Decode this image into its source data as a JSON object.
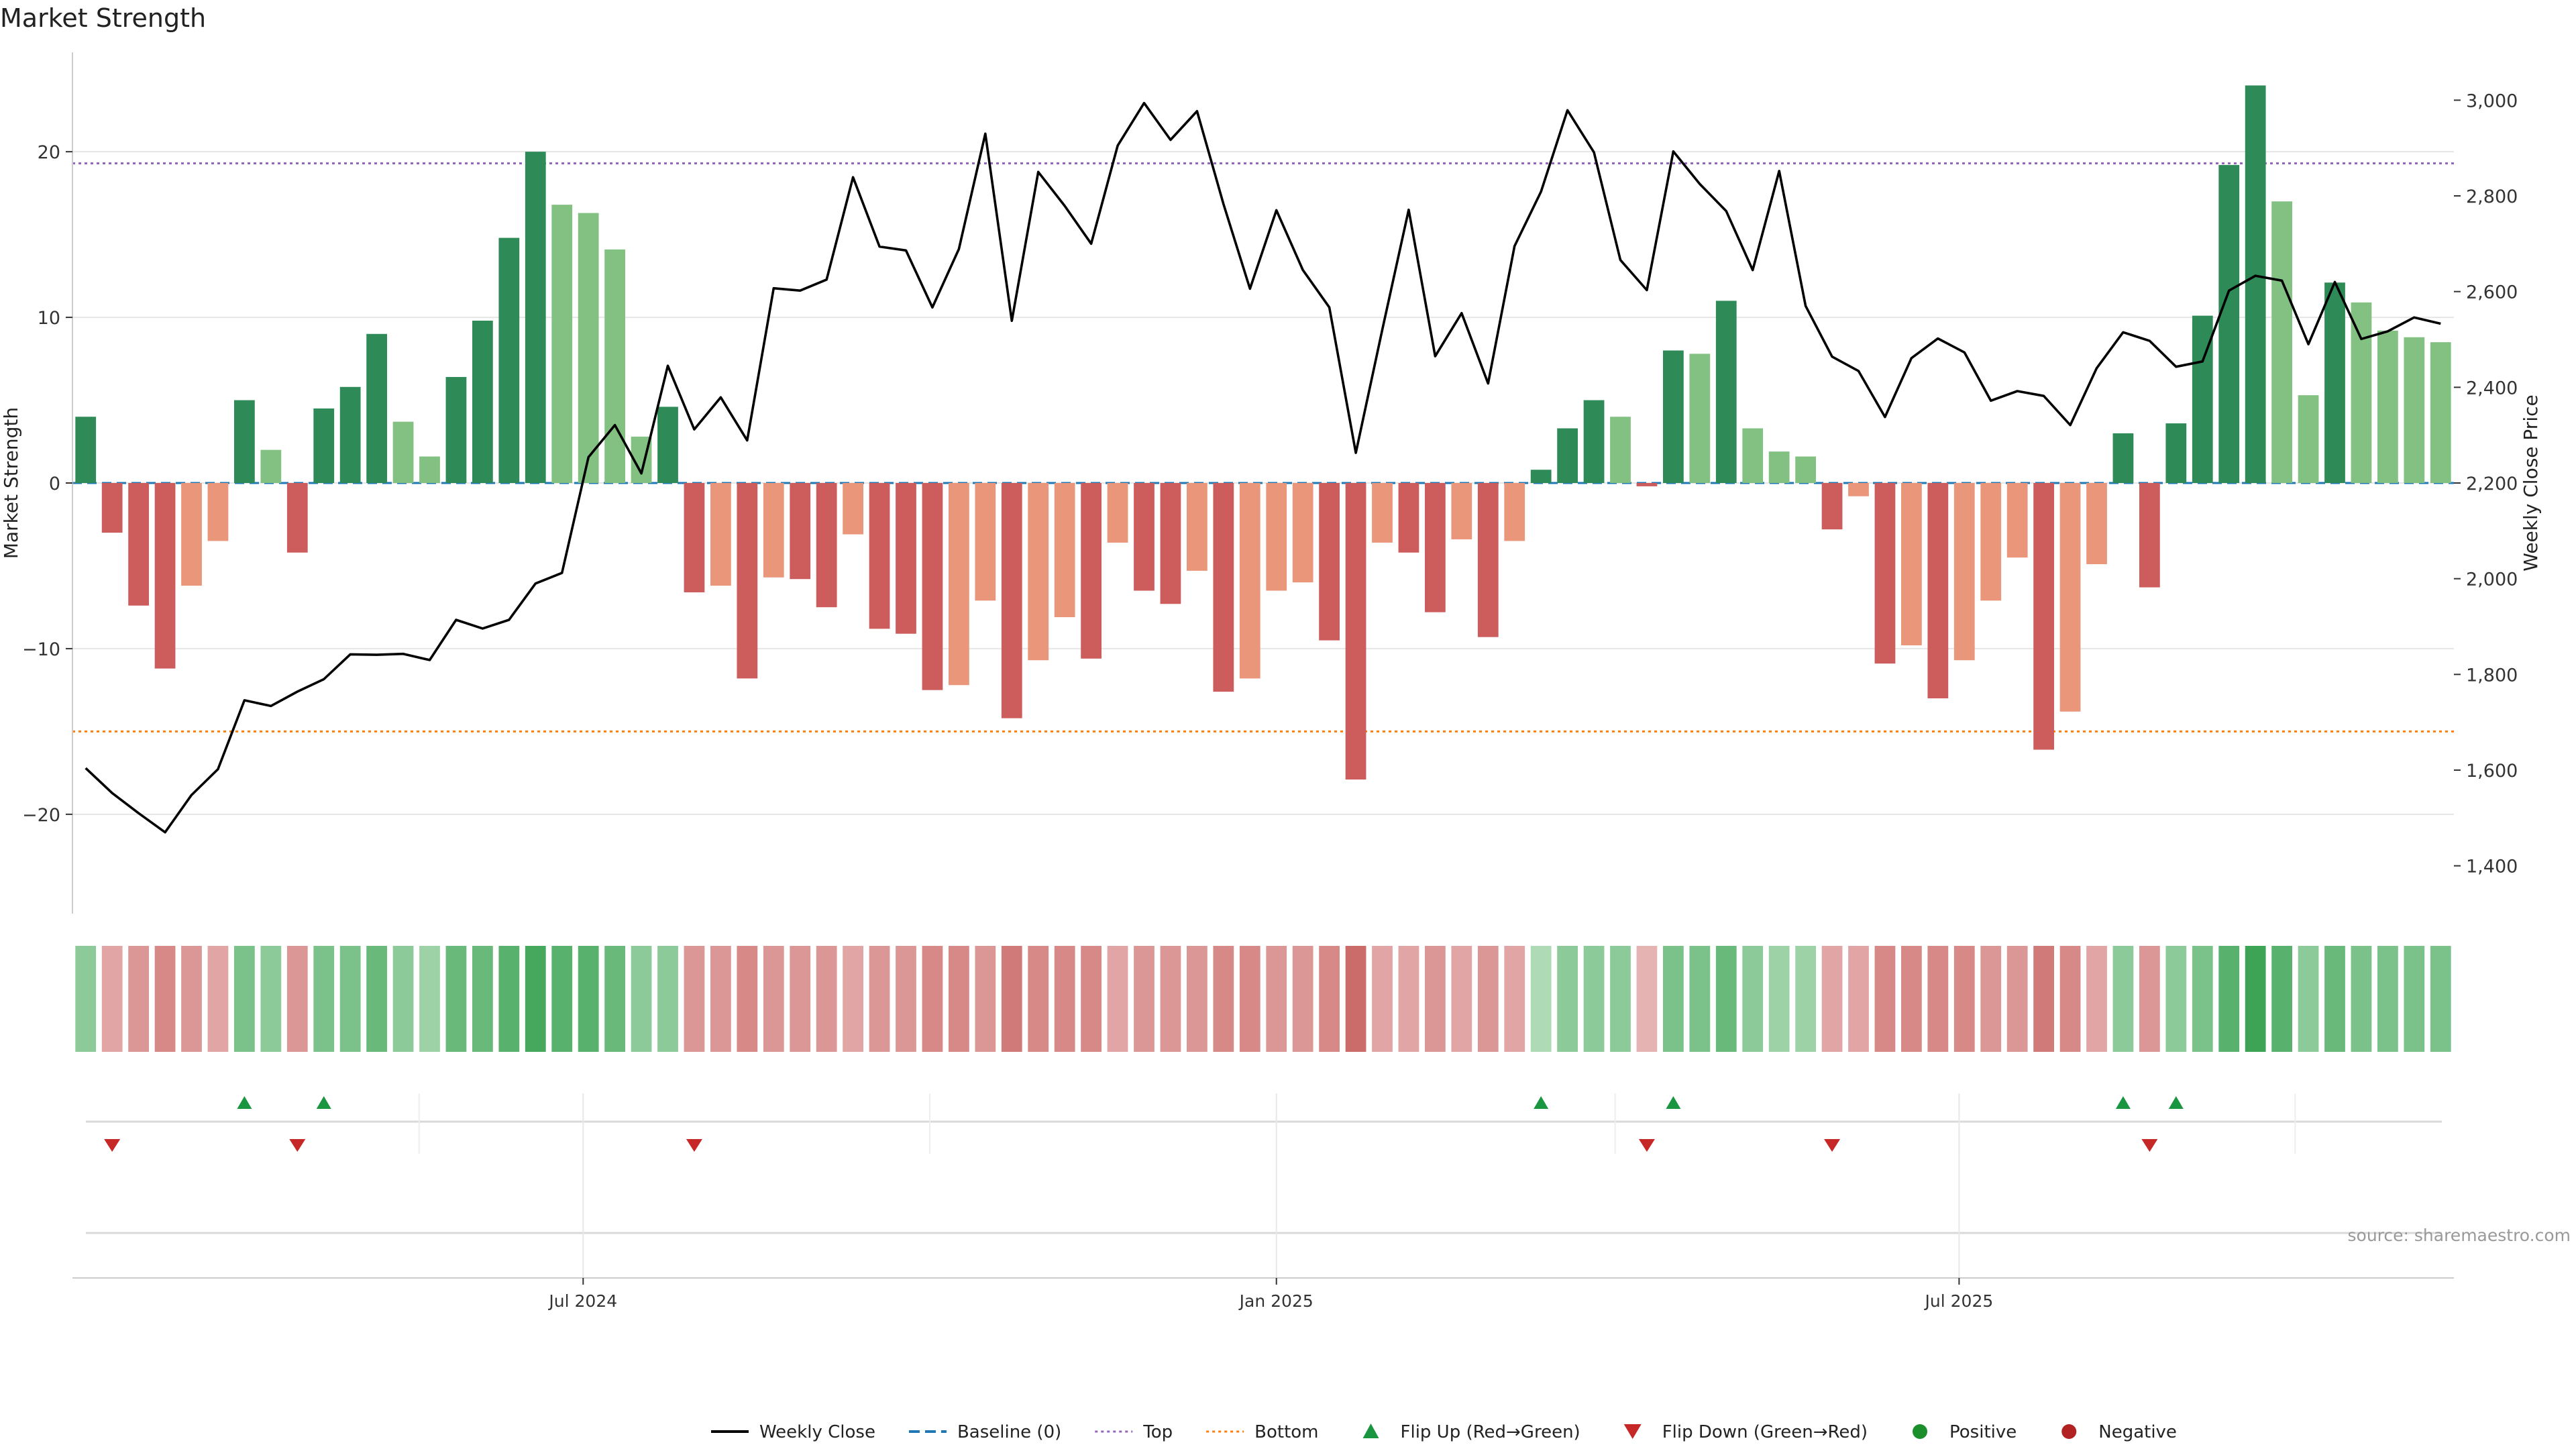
{
  "title": "Market Strength",
  "watermark": "source: sharemaestro.com",
  "legend": [
    {
      "label": "Weekly Close",
      "kind": "line",
      "color": "#000000"
    },
    {
      "label": "Baseline (0)",
      "kind": "dash",
      "color": "#1f77b4"
    },
    {
      "label": "Top",
      "kind": "dot",
      "color": "#9467bd"
    },
    {
      "label": "Bottom",
      "kind": "dot",
      "color": "#ff7f0e"
    },
    {
      "label": "Flip Up (Red→Green)",
      "kind": "tri-up",
      "color": "#1a9641"
    },
    {
      "label": "Flip Down (Green→Red)",
      "kind": "tri-down",
      "color": "#c62828"
    },
    {
      "label": "Positive",
      "kind": "circle",
      "color": "#1a8f2c"
    },
    {
      "label": "Negative",
      "kind": "circle",
      "color": "#b22222"
    }
  ],
  "colors": {
    "pos_strong": "#2e8b57",
    "pos_weak": "#82c182",
    "neg_strong": "#cd5c5c",
    "neg_weak": "#e9967a",
    "top_line": "#9467bd",
    "bottom_line": "#ff7f0e",
    "baseline": "#1f77b4",
    "price_line": "#000000"
  },
  "chart_data": {
    "type": "bar",
    "title": "Market Strength",
    "ylabel": "Market Strength",
    "y2label": "Weekly Close Price",
    "ylim": [
      -26,
      26
    ],
    "y2lim": [
      1300,
      3100
    ],
    "yticks": [
      -20,
      -10,
      0,
      10,
      20
    ],
    "yticklabels": [
      "−20",
      "−10",
      "0",
      "10",
      "20"
    ],
    "y2ticks": [
      1400,
      1600,
      1800,
      2000,
      2200,
      2400,
      2600,
      2800,
      3000
    ],
    "y2ticklabels": [
      "1,400",
      "1,600",
      "1,800",
      "2,000",
      "2,200",
      "2,400",
      "2,600",
      "2,800",
      "3,000"
    ],
    "top_level": 19.3,
    "bottom_level": -15,
    "baseline": 0,
    "xticks": [
      19.3,
      45.5,
      71.3
    ],
    "xticklabels": [
      "Jul 2024",
      "Jan 2025",
      "Jul 2025"
    ],
    "grid": true,
    "legend_position": "bottom-center",
    "market_strength": [
      4,
      -3,
      -7.4,
      -11.2,
      -6.2,
      -3.5,
      5,
      2,
      -4.2,
      4.5,
      5.8,
      9,
      3.7,
      1.6,
      6.4,
      9.8,
      14.8,
      20,
      16.8,
      16.3,
      14.1,
      2.8,
      4.6,
      -6.6,
      -6.2,
      -11.8,
      -5.7,
      -5.8,
      -7.5,
      -3.1,
      -8.8,
      -9.1,
      -12.5,
      -12.2,
      -7.1,
      -14.2,
      -10.7,
      -8.1,
      -10.6,
      -3.6,
      -6.5,
      -7.3,
      -5.3,
      -12.6,
      -11.8,
      -6.5,
      -6,
      -9.5,
      -17.9,
      -3.6,
      -4.2,
      -7.8,
      -3.4,
      -9.3,
      -3.5,
      0.8,
      3.3,
      5,
      4,
      -0.2,
      8,
      7.8,
      11,
      3.3,
      1.9,
      1.6,
      -2.8,
      -0.8,
      -10.9,
      -9.8,
      -13,
      -10.7,
      -7.1,
      -4.5,
      -16.1,
      -13.8,
      -4.9,
      3,
      -6.3,
      3.6,
      10.1,
      19.2,
      24,
      17,
      5.3,
      12.1,
      10.9,
      9.2,
      8.8,
      8.5
    ],
    "strength_class": [
      "s",
      "s",
      "s",
      "s",
      "w",
      "w",
      "s",
      "w",
      "s",
      "s",
      "s",
      "s",
      "w",
      "w",
      "s",
      "s",
      "s",
      "s",
      "w",
      "w",
      "w",
      "w",
      "s",
      "s",
      "w",
      "s",
      "w",
      "s",
      "s",
      "w",
      "s",
      "s",
      "s",
      "w",
      "w",
      "s",
      "w",
      "w",
      "s",
      "w",
      "s",
      "s",
      "w",
      "s",
      "w",
      "w",
      "w",
      "s",
      "s",
      "w",
      "s",
      "s",
      "w",
      "s",
      "w",
      "s",
      "s",
      "s",
      "w",
      "s",
      "s",
      "w",
      "s",
      "w",
      "w",
      "w",
      "s",
      "w",
      "s",
      "w",
      "s",
      "w",
      "w",
      "w",
      "s",
      "w",
      "w",
      "s",
      "s",
      "s",
      "s",
      "s",
      "s",
      "w",
      "w",
      "s",
      "w",
      "w",
      "w",
      "w"
    ],
    "weekly_close": [
      1604,
      1552,
      1510,
      1470,
      1548,
      1602,
      1746,
      1734,
      1764,
      1790,
      1842,
      1841,
      1843,
      1830,
      1914,
      1896,
      1914,
      1990,
      2012,
      2254,
      2321,
      2220,
      2445,
      2312,
      2379,
      2289,
      2607,
      2602,
      2625,
      2839,
      2694,
      2686,
      2567,
      2689,
      2930,
      2539,
      2850,
      2779,
      2700,
      2905,
      2994,
      2917,
      2977,
      2783,
      2606,
      2770,
      2645,
      2567,
      2263,
      2520,
      2771,
      2465,
      2555,
      2408,
      2695,
      2809,
      2979,
      2891,
      2666,
      2603,
      2893,
      2825,
      2768,
      2645,
      2852,
      2570,
      2464,
      2434,
      2338,
      2461,
      2502,
      2473,
      2372,
      2392,
      2382,
      2321,
      2440,
      2515,
      2497,
      2443,
      2454,
      2602,
      2633,
      2623,
      2490,
      2620,
      2501,
      2517,
      2546,
      2533
    ],
    "heat_intensity": [
      0.5,
      0.4,
      0.5,
      0.6,
      0.5,
      0.4,
      0.6,
      0.5,
      0.5,
      0.6,
      0.6,
      0.7,
      0.5,
      0.4,
      0.7,
      0.7,
      0.8,
      0.9,
      0.8,
      0.8,
      0.7,
      0.5,
      0.5,
      0.5,
      0.5,
      0.6,
      0.5,
      0.5,
      0.5,
      0.4,
      0.5,
      0.5,
      0.6,
      0.6,
      0.5,
      0.7,
      0.6,
      0.6,
      0.6,
      0.4,
      0.5,
      0.5,
      0.5,
      0.6,
      0.6,
      0.5,
      0.5,
      0.6,
      0.8,
      0.4,
      0.4,
      0.5,
      0.4,
      0.5,
      0.4,
      0.3,
      0.5,
      0.5,
      0.5,
      0.3,
      0.6,
      0.6,
      0.7,
      0.5,
      0.4,
      0.4,
      0.4,
      0.4,
      0.6,
      0.6,
      0.6,
      0.6,
      0.5,
      0.5,
      0.7,
      0.6,
      0.4,
      0.5,
      0.5,
      0.5,
      0.6,
      0.8,
      0.95,
      0.8,
      0.5,
      0.7,
      0.6,
      0.6,
      0.6,
      0.6
    ],
    "flip_up": [
      6,
      9,
      55,
      60,
      77,
      79
    ],
    "flip_down": [
      1,
      8,
      23,
      59,
      66,
      78
    ]
  }
}
